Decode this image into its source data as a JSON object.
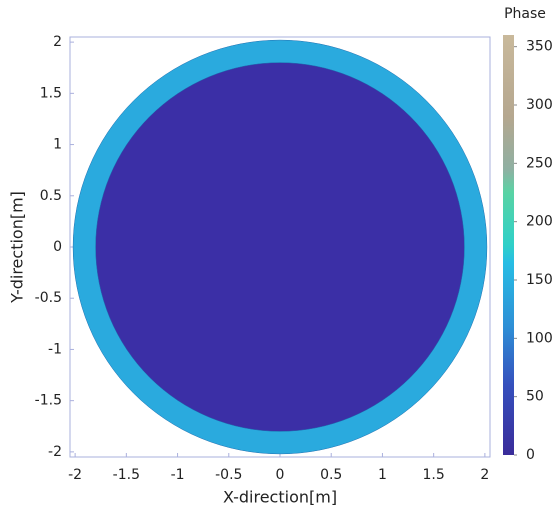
{
  "chart_data": {
    "type": "phase-map",
    "xlabel": "X-direction[m]",
    "ylabel": "Y-direction[m]",
    "colorbar_label": "Phase",
    "xlim": [
      -2.05,
      2.05
    ],
    "ylim": [
      -2.05,
      2.05
    ],
    "xticks": [
      -2,
      -1.5,
      -1,
      -0.5,
      0,
      0.5,
      1,
      1.5,
      2
    ],
    "yticks": [
      -2,
      -1.5,
      -1,
      -0.5,
      0,
      0.5,
      1,
      1.5,
      2
    ],
    "clim": [
      0,
      360
    ],
    "cticks": [
      0,
      50,
      100,
      150,
      200,
      250,
      300,
      350
    ],
    "colorscale": [
      [
        0,
        "#3a2c9a"
      ],
      [
        60,
        "#3550bd"
      ],
      [
        110,
        "#2e8fd6"
      ],
      [
        165,
        "#27bde4"
      ],
      [
        180,
        "#2fd0c8"
      ],
      [
        225,
        "#59d3a4"
      ],
      [
        245,
        "#8fb0a2"
      ],
      [
        290,
        "#b5a78f"
      ],
      [
        360,
        "#c9b99b"
      ]
    ],
    "regions": [
      {
        "radius": 2.02,
        "phase": 140,
        "color": "#2aaade"
      },
      {
        "radius": 1.8,
        "phase": 5,
        "color": "#3b2fa6"
      }
    ]
  }
}
